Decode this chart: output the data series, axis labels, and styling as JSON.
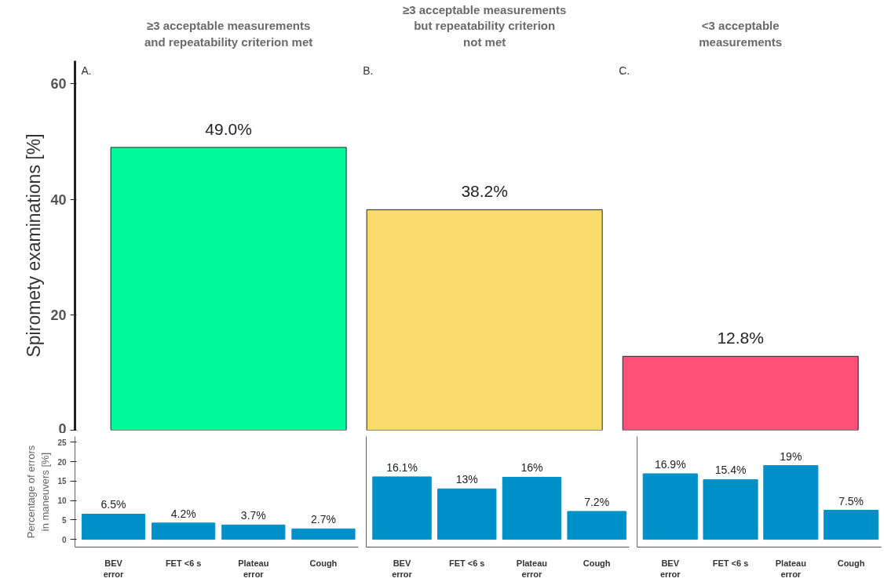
{
  "chart_data": [
    {
      "type": "bar",
      "categories": [
        "≥3 acceptable measurements\nand repeatability criterion met",
        "≥3 acceptable measurements\nbut repeatability criterion\nnot met",
        "<3 acceptable\nmeasurements"
      ],
      "values": [
        49.0,
        38.2,
        12.8
      ],
      "value_labels": [
        "49.0%",
        "38.2%",
        "12.8%"
      ],
      "colors": [
        "#00fa9a",
        "#fadb6a",
        "#ff4f7b"
      ],
      "ylabel": "Spiromety examinations [%]",
      "ylim": [
        0,
        64
      ],
      "yticks": [
        0,
        20,
        40,
        60
      ],
      "annotations": [
        "A.",
        "B.",
        "C."
      ]
    },
    {
      "type": "bar",
      "categories": [
        "BEV\nerror",
        "FET <6 s",
        "Plateau\nerror",
        "Cough"
      ],
      "values": [
        6.5,
        4.2,
        3.7,
        2.7
      ],
      "value_labels": [
        "6.5%",
        "4.2%",
        "3.7%",
        "2.7%"
      ],
      "color": "#0090c8",
      "ylabel": "Percentage of errors\nin maneuvers [%]",
      "ylim": [
        -2,
        26.5
      ],
      "yticks": [
        0,
        5,
        10,
        15,
        20,
        25
      ]
    },
    {
      "type": "bar",
      "categories": [
        "BEV\nerror",
        "FET <6 s",
        "Plateau\nerror",
        "Cough"
      ],
      "values": [
        16.1,
        13,
        16,
        7.2
      ],
      "value_labels": [
        "16.1%",
        "13%",
        "16%",
        "7.2%"
      ],
      "color": "#0090c8",
      "ylim": [
        -2,
        26.5
      ],
      "yticks": [
        0,
        5,
        10,
        15,
        20,
        25
      ],
      "tick_labels": "x"
    },
    {
      "type": "bar",
      "categories": [
        "BEV\nerror",
        "FET <6 s",
        "Plateau\nerror",
        "Cough"
      ],
      "values": [
        16.9,
        15.4,
        19,
        7.5
      ],
      "value_labels": [
        "16.9%",
        "15.4%",
        "19%",
        "7.5%"
      ],
      "color": "#0090c8",
      "ylim": [
        -2,
        26.5
      ],
      "yticks": [
        0,
        5,
        10,
        15,
        20,
        25
      ],
      "tick_labels": "x"
    }
  ]
}
